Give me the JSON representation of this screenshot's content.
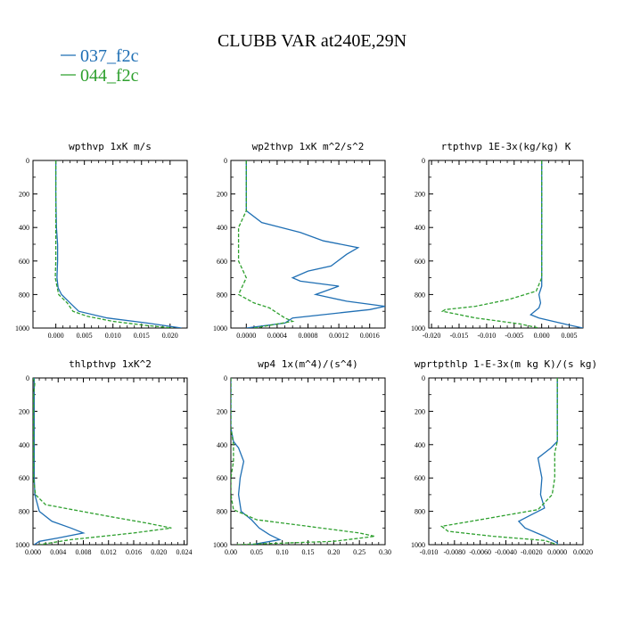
{
  "figure": {
    "title": "CLUBB VAR at240E,29N",
    "legend": [
      {
        "label": "037_f2c",
        "color": "#1f6fb4",
        "style": "solid"
      },
      {
        "label": "044_f2c",
        "color": "#2ea02e",
        "style": "dashed"
      }
    ]
  },
  "chart_data": [
    {
      "type": "line",
      "title": "wpthvp   1xK m/s",
      "xlim": [
        -0.004,
        0.023
      ],
      "ylim": [
        1000,
        0
      ],
      "xticks": [
        0.0,
        0.005,
        0.01,
        0.015,
        0.02
      ],
      "xticklabels": [
        "0.000",
        "0.005",
        "0.010",
        "0.015",
        "0.020"
      ],
      "yticks": [
        0,
        200,
        400,
        600,
        800,
        1000
      ],
      "yticklabels": [
        "0",
        "200",
        "400",
        "600",
        "800",
        "1000"
      ],
      "series": [
        {
          "label": "037_f2c",
          "points": [
            [
              0.0,
              0
            ],
            [
              0.0,
              200
            ],
            [
              0.0001,
              400
            ],
            [
              0.0003,
              500
            ],
            [
              0.0003,
              600
            ],
            [
              0.0002,
              700
            ],
            [
              0.0004,
              760
            ],
            [
              0.001,
              800
            ],
            [
              0.0025,
              850
            ],
            [
              0.004,
              900
            ],
            [
              0.009,
              940
            ],
            [
              0.016,
              970
            ],
            [
              0.022,
              1000
            ]
          ]
        },
        {
          "label": "044_f2c",
          "points": [
            [
              0.0,
              0
            ],
            [
              0.0,
              200
            ],
            [
              0.0,
              400
            ],
            [
              0.0,
              600
            ],
            [
              -0.0001,
              700
            ],
            [
              0.0005,
              800
            ],
            [
              0.002,
              850
            ],
            [
              0.003,
              900
            ],
            [
              0.0055,
              930
            ],
            [
              0.01,
              960
            ],
            [
              0.016,
              985
            ],
            [
              0.0205,
              1000
            ]
          ]
        }
      ]
    },
    {
      "type": "line",
      "title": "wp2thvp   1xK m^2/s^2",
      "xlim": [
        -0.0002,
        0.0018
      ],
      "ylim": [
        1000,
        0
      ],
      "xticks": [
        0.0,
        0.0004,
        0.0008,
        0.0012,
        0.0016
      ],
      "xticklabels": [
        "0.0000",
        "0.0004",
        "0.0008",
        "0.0012",
        "0.0016"
      ],
      "yticks": [
        0,
        200,
        400,
        600,
        800,
        1000
      ],
      "yticklabels": [
        "0",
        "200",
        "400",
        "600",
        "800",
        "1000"
      ],
      "series": [
        {
          "label": "037_f2c",
          "points": [
            [
              0.0,
              0
            ],
            [
              0.0,
              200
            ],
            [
              0.0,
              300
            ],
            [
              0.0002,
              370
            ],
            [
              0.0007,
              430
            ],
            [
              0.001,
              480
            ],
            [
              0.00145,
              520
            ],
            [
              0.0013,
              560
            ],
            [
              0.0011,
              630
            ],
            [
              0.0008,
              660
            ],
            [
              0.0006,
              700
            ],
            [
              0.0007,
              720
            ],
            [
              0.0012,
              750
            ],
            [
              0.0009,
              800
            ],
            [
              0.0013,
              840
            ],
            [
              0.0018,
              870
            ],
            [
              0.0016,
              890
            ],
            [
              0.0006,
              940
            ],
            [
              0.0005,
              970
            ],
            [
              0.0,
              1000
            ]
          ]
        },
        {
          "label": "044_f2c",
          "points": [
            [
              0.0,
              0
            ],
            [
              0.0,
              200
            ],
            [
              0.0,
              300
            ],
            [
              -0.0001,
              400
            ],
            [
              -0.0001,
              500
            ],
            [
              -0.0001,
              600
            ],
            [
              0.0,
              700
            ],
            [
              -0.0001,
              800
            ],
            [
              0.0001,
              850
            ],
            [
              0.0003,
              880
            ],
            [
              0.0005,
              940
            ],
            [
              0.0006,
              960
            ],
            [
              0.0001,
              1000
            ]
          ]
        }
      ]
    },
    {
      "type": "line",
      "title": "rtpthvp   1E-3x(kg/kg) K",
      "xlim": [
        -0.0205,
        0.0075
      ],
      "ylim": [
        1000,
        0
      ],
      "xticks": [
        -0.02,
        -0.015,
        -0.01,
        -0.005,
        0.0,
        0.005
      ],
      "xticklabels": [
        "-0.020",
        "-0.015",
        "-0.010",
        "-0.005",
        "0.000",
        "0.005"
      ],
      "yticks": [
        0,
        200,
        400,
        600,
        800,
        1000
      ],
      "yticklabels": [
        "0",
        "200",
        "400",
        "600",
        "800",
        "1000"
      ],
      "series": [
        {
          "label": "037_f2c",
          "points": [
            [
              0.0,
              0
            ],
            [
              0.0,
              200
            ],
            [
              0.0,
              400
            ],
            [
              0.0,
              600
            ],
            [
              0.0,
              700
            ],
            [
              0.0,
              750
            ],
            [
              -0.0005,
              800
            ],
            [
              -0.0002,
              850
            ],
            [
              -0.0005,
              880
            ],
            [
              -0.002,
              920
            ],
            [
              -0.0005,
              940
            ],
            [
              0.004,
              975
            ],
            [
              0.0075,
              1000
            ]
          ]
        },
        {
          "label": "044_f2c",
          "points": [
            [
              0.0,
              0
            ],
            [
              0.0,
              400
            ],
            [
              0.0,
              700
            ],
            [
              -0.001,
              780
            ],
            [
              -0.006,
              830
            ],
            [
              -0.012,
              870
            ],
            [
              -0.0175,
              890
            ],
            [
              -0.018,
              900
            ],
            [
              -0.012,
              940
            ],
            [
              -0.004,
              975
            ],
            [
              -0.0005,
              1000
            ]
          ]
        }
      ]
    },
    {
      "type": "line",
      "title": "thlpthvp   1xK^2",
      "xlim": [
        0.0,
        0.0245
      ],
      "ylim": [
        1000,
        0
      ],
      "xticks": [
        0.0,
        0.004,
        0.008,
        0.012,
        0.016,
        0.02,
        0.024
      ],
      "xticklabels": [
        "0.000",
        "0.004",
        "0.008",
        "0.012",
        "0.016",
        "0.020",
        "0.024"
      ],
      "yticks": [
        0,
        200,
        400,
        600,
        800,
        1000
      ],
      "yticklabels": [
        "0",
        "200",
        "400",
        "600",
        "800",
        "1000"
      ],
      "series": [
        {
          "label": "037_f2c",
          "points": [
            [
              0.0002,
              0
            ],
            [
              0.0002,
              200
            ],
            [
              0.0002,
              400
            ],
            [
              0.0002,
              600
            ],
            [
              0.0003,
              700
            ],
            [
              0.001,
              800
            ],
            [
              0.003,
              860
            ],
            [
              0.006,
              900
            ],
            [
              0.008,
              930
            ],
            [
              0.004,
              960
            ],
            [
              0.001,
              980
            ],
            [
              0.0002,
              1000
            ]
          ]
        },
        {
          "label": "044_f2c",
          "points": [
            [
              0.0,
              0
            ],
            [
              0.0003,
              30
            ],
            [
              0.0001,
              100
            ],
            [
              0.0001,
              400
            ],
            [
              0.0001,
              600
            ],
            [
              0.0004,
              700
            ],
            [
              0.002,
              760
            ],
            [
              0.012,
              830
            ],
            [
              0.018,
              870
            ],
            [
              0.022,
              900
            ],
            [
              0.016,
              930
            ],
            [
              0.006,
              970
            ],
            [
              0.001,
              1000
            ]
          ]
        }
      ]
    },
    {
      "type": "line",
      "title": "wp4   1x(m^4)/(s^4)",
      "xlim": [
        0.0,
        0.3
      ],
      "ylim": [
        1000,
        0
      ],
      "xticks": [
        0.0,
        0.05,
        0.1,
        0.15,
        0.2,
        0.25,
        0.3
      ],
      "xticklabels": [
        "0.00",
        "0.05",
        "0.10",
        "0.15",
        "0.20",
        "0.25",
        "0.30"
      ],
      "yticks": [
        0,
        200,
        400,
        600,
        800,
        1000
      ],
      "yticklabels": [
        "0",
        "200",
        "400",
        "600",
        "800",
        "1000"
      ],
      "series": [
        {
          "label": "037_f2c",
          "points": [
            [
              0.0,
              0
            ],
            [
              0.0,
              300
            ],
            [
              0.005,
              380
            ],
            [
              0.015,
              420
            ],
            [
              0.025,
              500
            ],
            [
              0.018,
              600
            ],
            [
              0.015,
              700
            ],
            [
              0.02,
              800
            ],
            [
              0.04,
              850
            ],
            [
              0.055,
              900
            ],
            [
              0.075,
              940
            ],
            [
              0.095,
              970
            ],
            [
              0.04,
              1000
            ]
          ]
        },
        {
          "label": "044_f2c",
          "points": [
            [
              0.0,
              0
            ],
            [
              0.0,
              300
            ],
            [
              0.005,
              400
            ],
            [
              0.005,
              500
            ],
            [
              0.0,
              600
            ],
            [
              0.0,
              700
            ],
            [
              0.005,
              790
            ],
            [
              0.05,
              850
            ],
            [
              0.15,
              890
            ],
            [
              0.25,
              930
            ],
            [
              0.28,
              950
            ],
            [
              0.2,
              980
            ],
            [
              0.01,
              1000
            ]
          ]
        }
      ]
    },
    {
      "type": "line",
      "title": "wprtpthlp   1-E-3x(m kg K)/(s kg)",
      "xlim": [
        -0.01,
        0.002
      ],
      "ylim": [
        1000,
        0
      ],
      "xticks": [
        -0.01,
        -0.008,
        -0.006,
        -0.004,
        -0.002,
        0.0,
        0.002
      ],
      "xticklabels": [
        "-0.010",
        "-0.0080",
        "-0.0060",
        "-0.0040",
        "-0.0020",
        "0.0000",
        "0.0020"
      ],
      "yticks": [
        0,
        200,
        400,
        600,
        800,
        1000
      ],
      "yticklabels": [
        "0",
        "200",
        "400",
        "600",
        "800",
        "1000"
      ],
      "series": [
        {
          "label": "037_f2c",
          "points": [
            [
              0.0,
              0
            ],
            [
              0.0,
              300
            ],
            [
              0.0,
              380
            ],
            [
              -0.0005,
              420
            ],
            [
              -0.0015,
              480
            ],
            [
              -0.0012,
              600
            ],
            [
              -0.0013,
              700
            ],
            [
              -0.001,
              780
            ],
            [
              -0.002,
              820
            ],
            [
              -0.003,
              860
            ],
            [
              -0.0025,
              900
            ],
            [
              -0.001,
              950
            ],
            [
              0.0,
              990
            ],
            [
              0.0,
              1000
            ]
          ]
        },
        {
          "label": "044_f2c",
          "points": [
            [
              0.0,
              0
            ],
            [
              0.0,
              300
            ],
            [
              0.0,
              380
            ],
            [
              -0.0002,
              450
            ],
            [
              -0.0002,
              600
            ],
            [
              -0.0004,
              700
            ],
            [
              -0.0015,
              790
            ],
            [
              -0.006,
              850
            ],
            [
              -0.009,
              890
            ],
            [
              -0.0085,
              920
            ],
            [
              -0.005,
              950
            ],
            [
              -0.001,
              975
            ],
            [
              0.0,
              1000
            ]
          ]
        }
      ]
    }
  ]
}
